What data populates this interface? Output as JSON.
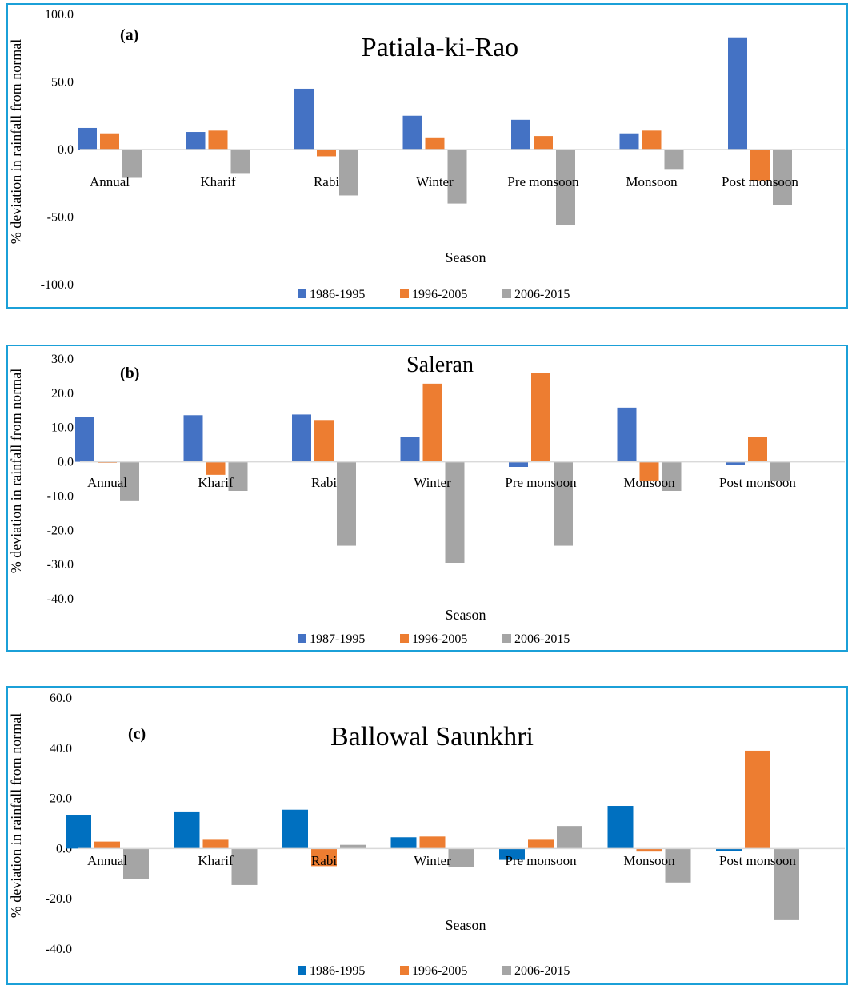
{
  "chart_data": [
    {
      "type": "bar",
      "panel_label": "(a)",
      "title": "Patiala-ki-Rao",
      "xlabel": "Season",
      "ylabel": "% deviation in rainfall from normal",
      "ylim": [
        -100,
        100
      ],
      "yticks": [
        "100.0",
        "50.0",
        "0.0",
        "-50.0",
        "-100.0"
      ],
      "categories": [
        "Annual",
        "Kharif",
        "Rabi",
        "Winter",
        "Pre monsoon",
        "Monsoon",
        "Post monsoon"
      ],
      "series": [
        {
          "name": "1986-1995",
          "color": "#4472c4",
          "values": [
            16,
            13,
            45,
            25,
            22,
            12,
            83
          ]
        },
        {
          "name": "1996-2005",
          "color": "#ed7d31",
          "values": [
            12,
            14,
            -5,
            9,
            10,
            14,
            -23
          ]
        },
        {
          "name": "2006-2015",
          "color": "#a5a5a5",
          "values": [
            -21,
            -18,
            -34,
            -40,
            -56,
            -15,
            -41
          ]
        }
      ],
      "legend": "bottom"
    },
    {
      "type": "bar",
      "panel_label": "(b)",
      "title": "Saleran",
      "xlabel": "Season",
      "ylabel": "% deviation in rainfall from normal",
      "ylim": [
        -40,
        30
      ],
      "yticks": [
        "30.0",
        "20.0",
        "10.0",
        "0.0",
        "-10.0",
        "-20.0",
        "-30.0",
        "-40.0"
      ],
      "categories": [
        "Annual",
        "Kharif",
        "Rabi",
        "Winter",
        "Pre monsoon",
        "Monsoon",
        "Post monsoon"
      ],
      "series": [
        {
          "name": "1987-1995",
          "color": "#4472c4",
          "values": [
            13.2,
            13.6,
            13.8,
            7.2,
            -1.5,
            15.8,
            -1.0
          ]
        },
        {
          "name": "1996-2005",
          "color": "#ed7d31",
          "values": [
            -0.3,
            -3.8,
            12.2,
            22.8,
            26.0,
            -5.5,
            7.2
          ]
        },
        {
          "name": "2006-2015",
          "color": "#a5a5a5",
          "values": [
            -11.5,
            -8.5,
            -24.5,
            -29.5,
            -24.5,
            -8.5,
            -5.5
          ]
        }
      ],
      "legend": "bottom"
    },
    {
      "type": "bar",
      "panel_label": "(c)",
      "title": "Ballowal Saunkhri",
      "xlabel": "Season",
      "ylabel": "% deviation in rainfall from normal",
      "ylim": [
        -40,
        60
      ],
      "yticks": [
        "60.0",
        "40.0",
        "20.0",
        "0.0",
        "-20.0",
        "-40.0"
      ],
      "categories": [
        "Annual",
        "Kharif",
        "Rabi",
        "Winter",
        "Pre monsoon",
        "Monsoon",
        "Post monsoon"
      ],
      "series": [
        {
          "name": "1986-1995",
          "color": "#0070c0",
          "values": [
            13.5,
            14.8,
            15.5,
            4.5,
            -4.5,
            17.0,
            -1.0
          ]
        },
        {
          "name": "1996-2005",
          "color": "#ed7d31",
          "values": [
            2.8,
            3.5,
            -7.0,
            4.8,
            3.5,
            -1.2,
            39.0
          ]
        },
        {
          "name": "2006-2015",
          "color": "#a5a5a5",
          "values": [
            -12.0,
            -14.5,
            1.5,
            -7.5,
            9.0,
            -13.5,
            -28.5
          ]
        }
      ],
      "legend": "bottom"
    }
  ]
}
